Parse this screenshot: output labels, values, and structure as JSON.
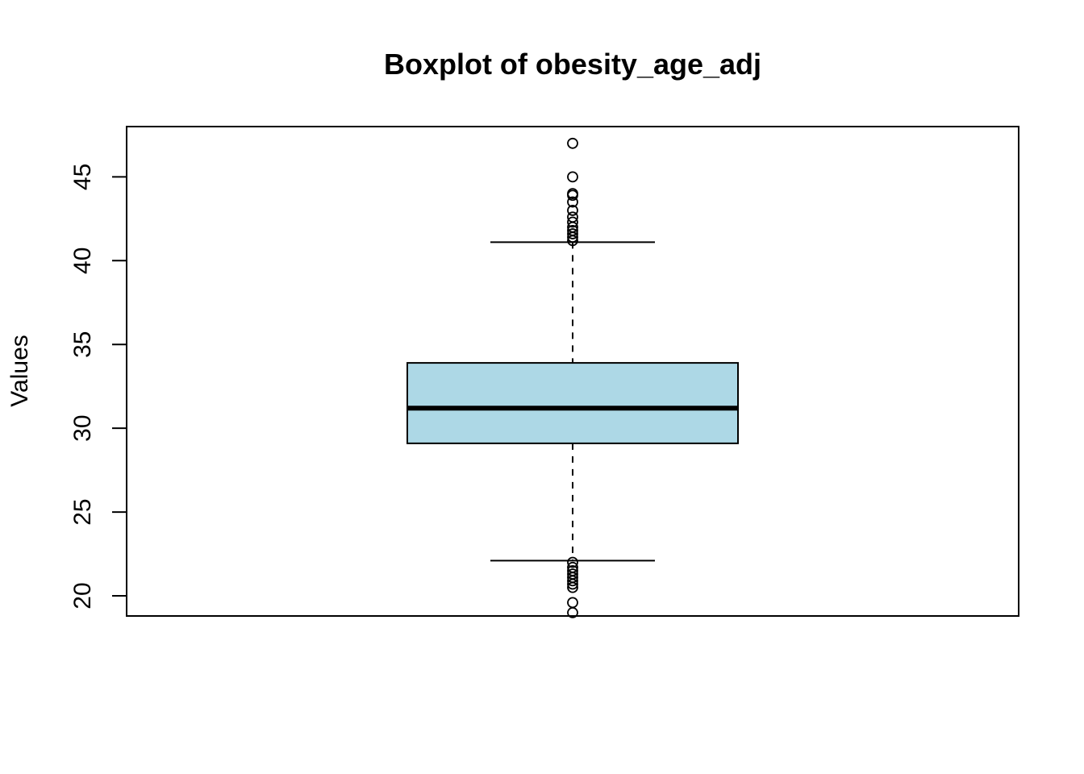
{
  "chart_data": {
    "type": "boxplot",
    "title": "Boxplot of obesity_age_adj",
    "ylabel": "Values",
    "xlabel": "",
    "ylim": [
      18.8,
      48.0
    ],
    "yticks": [
      20,
      25,
      30,
      35,
      40,
      45
    ],
    "grid": false,
    "box": {
      "lower_whisker": 22.1,
      "q1": 29.1,
      "median": 31.2,
      "q3": 33.9,
      "upper_whisker": 41.1,
      "fill_color": "#add8e6"
    },
    "outliers": [
      47.0,
      45.0,
      44.0,
      43.9,
      43.5,
      43.0,
      42.6,
      42.3,
      42.0,
      41.8,
      41.6,
      41.4,
      41.2,
      22.0,
      21.7,
      21.5,
      21.3,
      21.1,
      20.9,
      20.7,
      20.5,
      19.6,
      19.0
    ]
  }
}
